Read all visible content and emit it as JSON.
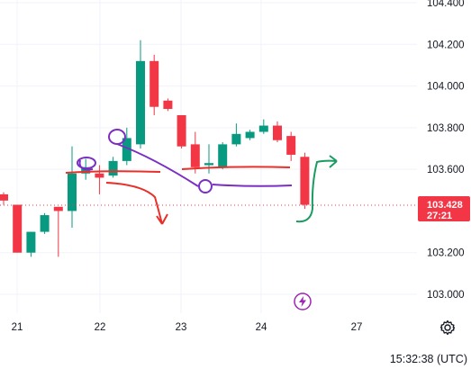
{
  "chart_data": {
    "type": "candlestick",
    "y_ticks": [
      "104.400",
      "104.200",
      "104.000",
      "103.800",
      "103.600",
      "103.200",
      "103.000"
    ],
    "x_ticks": [
      "21",
      "22",
      "23",
      "24",
      "27"
    ],
    "ylim": [
      102.94,
      104.4
    ],
    "grid": true,
    "candles": [
      {
        "o": 103.48,
        "h": 103.49,
        "l": 103.43,
        "c": 103.45
      },
      {
        "o": 103.43,
        "h": 103.43,
        "l": 103.2,
        "c": 103.2
      },
      {
        "o": 103.2,
        "h": 103.3,
        "l": 103.18,
        "c": 103.3
      },
      {
        "o": 103.3,
        "h": 103.39,
        "l": 103.29,
        "c": 103.38
      },
      {
        "o": 103.42,
        "h": 103.42,
        "l": 103.18,
        "c": 103.4
      },
      {
        "o": 103.4,
        "h": 103.71,
        "l": 103.32,
        "c": 103.58
      },
      {
        "o": 103.58,
        "h": 103.65,
        "l": 103.55,
        "c": 103.61
      },
      {
        "o": 103.58,
        "h": 103.62,
        "l": 103.48,
        "c": 103.56
      },
      {
        "o": 103.57,
        "h": 103.66,
        "l": 103.56,
        "c": 103.64
      },
      {
        "o": 103.64,
        "h": 103.8,
        "l": 103.62,
        "c": 103.75
      },
      {
        "o": 103.72,
        "h": 104.22,
        "l": 103.7,
        "c": 104.12
      },
      {
        "o": 104.12,
        "h": 104.15,
        "l": 103.86,
        "c": 103.9
      },
      {
        "o": 103.93,
        "h": 103.94,
        "l": 103.88,
        "c": 103.89
      },
      {
        "o": 103.86,
        "h": 103.86,
        "l": 103.7,
        "c": 103.71
      },
      {
        "o": 103.72,
        "h": 103.78,
        "l": 103.58,
        "c": 103.61
      },
      {
        "o": 103.62,
        "h": 103.72,
        "l": 103.58,
        "c": 103.63
      },
      {
        "o": 103.61,
        "h": 103.73,
        "l": 103.6,
        "c": 103.72
      },
      {
        "o": 103.72,
        "h": 103.82,
        "l": 103.71,
        "c": 103.77
      },
      {
        "o": 103.75,
        "h": 103.79,
        "l": 103.74,
        "c": 103.78
      },
      {
        "o": 103.78,
        "h": 103.84,
        "l": 103.77,
        "c": 103.81
      },
      {
        "o": 103.81,
        "h": 103.83,
        "l": 103.73,
        "c": 103.74
      },
      {
        "o": 103.76,
        "h": 103.78,
        "l": 103.64,
        "c": 103.67
      },
      {
        "o": 103.66,
        "h": 103.68,
        "l": 103.41,
        "c": 103.43
      }
    ],
    "last_price": "103.428",
    "countdown": "27:21",
    "up_color": "#089981",
    "down_color": "#f23645"
  },
  "clock": "15:32:38 (UTC)",
  "icons": {
    "settings": "gear-icon",
    "bolt": "lightning-bolt-icon"
  }
}
